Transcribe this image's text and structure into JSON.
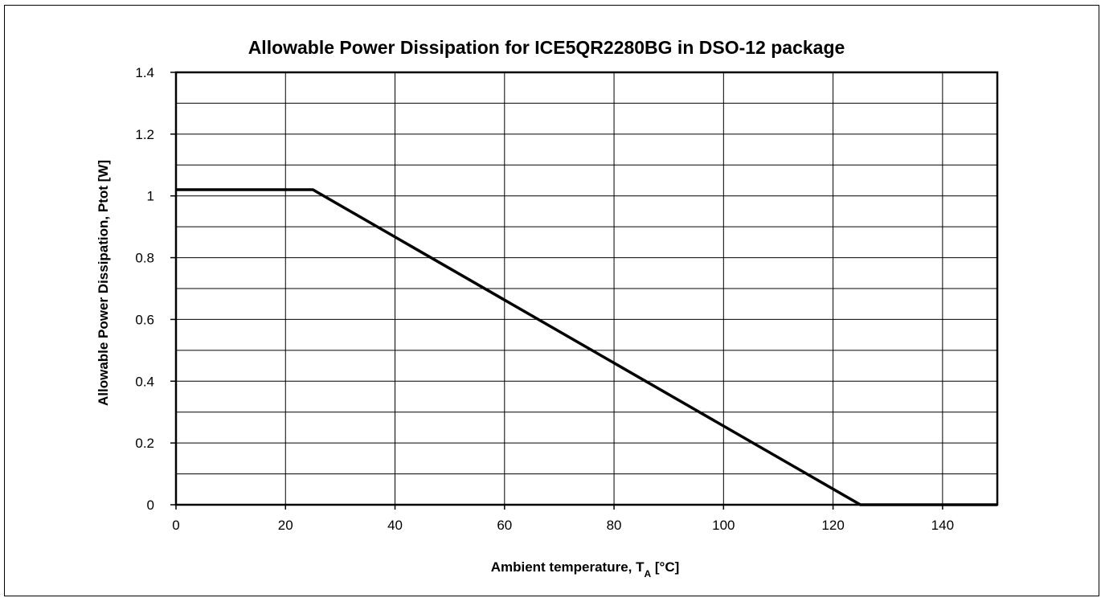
{
  "chart_data": {
    "type": "line",
    "title": "Allowable Power Dissipation for ICE5QR2280BG in DSO-12 package",
    "xlabel": "Ambient temperature, T",
    "xlabel_subscript": "A",
    "xlabel_unit": " [°C]",
    "ylabel": "Allowable Power Dissipation, Ptot [W]",
    "xlim": [
      0,
      150
    ],
    "ylim": [
      0,
      1.4
    ],
    "x_ticks": [
      0,
      20,
      40,
      60,
      80,
      100,
      120,
      140
    ],
    "y_ticks": [
      0,
      0.2,
      0.4,
      0.6,
      0.8,
      1,
      1.2,
      1.4
    ],
    "y_tick_labels": [
      "0",
      "0.2",
      "0.4",
      "0.6",
      "0.8",
      "1",
      "1.2",
      "1.4"
    ],
    "y_minor_grid_step": 0.1,
    "grid": true,
    "series": [
      {
        "x": [
          0,
          25,
          125,
          150
        ],
        "y": [
          1.02,
          1.02,
          0,
          0
        ],
        "color": "#000000"
      }
    ]
  }
}
